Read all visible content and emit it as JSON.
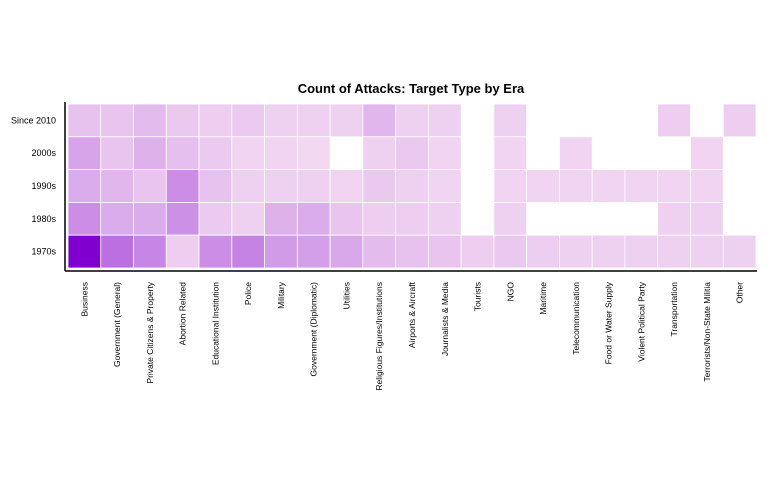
{
  "chart_data": {
    "type": "heatmap",
    "title": "Count of Attacks: Target Type by Era",
    "xlabel": "",
    "ylabel": "",
    "x_categories": [
      "Business",
      "Government (General)",
      "Private Citizens & Property",
      "Abortion Related",
      "Educational Institution",
      "Police",
      "Military",
      "Government (Diplomatic)",
      "Utilities",
      "Religious Figures/Institutions",
      "Airports & Aircraft",
      "Journalists & Media",
      "Tourists",
      "NGO",
      "Maritime",
      "Telecommunication",
      "Food or Water Supply",
      "Violent Political Party",
      "Transportation",
      "Terrorists/Non-State Militia",
      "Other"
    ],
    "y_categories": [
      "Since 2010",
      "2000s",
      "1990s",
      "1980s",
      "1970s"
    ],
    "values": [
      [
        20,
        18,
        25,
        15,
        12,
        14,
        10,
        10,
        10,
        30,
        10,
        10,
        null,
        10,
        null,
        null,
        null,
        null,
        12,
        null,
        12
      ],
      [
        50,
        18,
        35,
        22,
        14,
        8,
        8,
        6,
        null,
        10,
        15,
        8,
        null,
        8,
        null,
        8,
        null,
        null,
        null,
        8,
        null
      ],
      [
        40,
        30,
        18,
        80,
        20,
        10,
        10,
        10,
        8,
        15,
        10,
        8,
        null,
        8,
        8,
        8,
        8,
        8,
        8,
        8,
        null
      ],
      [
        80,
        40,
        40,
        75,
        14,
        10,
        35,
        40,
        18,
        12,
        12,
        10,
        null,
        10,
        null,
        null,
        null,
        null,
        10,
        10,
        null
      ],
      [
        400,
        130,
        90,
        12,
        80,
        95,
        60,
        55,
        45,
        25,
        20,
        18,
        12,
        15,
        12,
        10,
        10,
        10,
        10,
        10,
        10
      ]
    ],
    "color_scale": {
      "low": "#fff0f5",
      "high": "#8000d0"
    },
    "legend": "none",
    "grid": false
  }
}
